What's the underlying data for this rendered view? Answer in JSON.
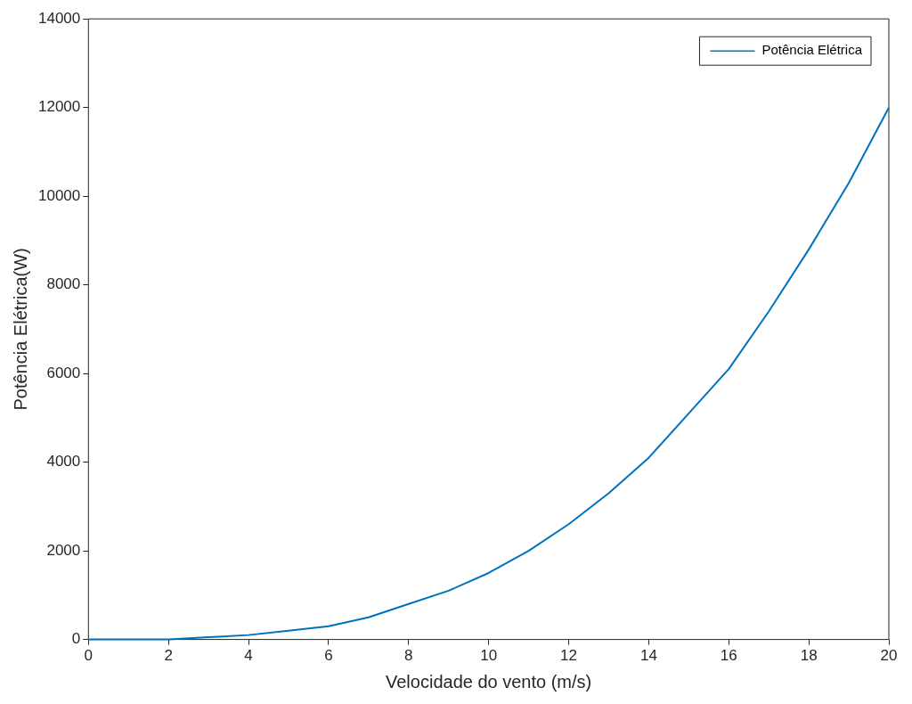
{
  "chart_data": {
    "type": "line",
    "xlabel": "Velocidade do vento (m/s)",
    "ylabel": "Potência Elétrica(W)",
    "x": [
      0,
      1,
      2,
      3,
      4,
      5,
      6,
      7,
      8,
      9,
      10,
      11,
      12,
      13,
      14,
      15,
      16,
      17,
      18,
      19,
      20
    ],
    "series": [
      {
        "name": "Potência Elétrica",
        "color": "#0072bd",
        "values": [
          0,
          0,
          0,
          50,
          100,
          200,
          300,
          500,
          800,
          1100,
          1500,
          2000,
          2600,
          3300,
          4100,
          5100,
          6100,
          7400,
          8800,
          10300,
          12000
        ]
      }
    ],
    "xlim": [
      0,
      20
    ],
    "xticks": [
      0,
      2,
      4,
      6,
      8,
      10,
      12,
      14,
      16,
      18,
      20
    ],
    "ylim": [
      0,
      14000
    ],
    "yticks": [
      0,
      2000,
      4000,
      6000,
      8000,
      10000,
      12000,
      14000
    ],
    "grid": false,
    "legend": "top right",
    "marker": "none",
    "line_style": "solid"
  }
}
